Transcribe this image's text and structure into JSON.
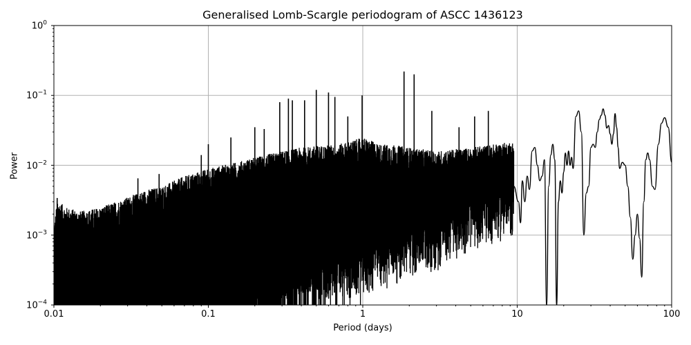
{
  "chart_data": {
    "type": "line",
    "title": "Generalised Lomb-Scargle periodogram of ASCC 1436123",
    "xlabel": "Period (days)",
    "ylabel": "Power",
    "xscale": "log",
    "yscale": "log",
    "xlim": [
      0.01,
      100
    ],
    "ylim": [
      0.0001,
      1
    ],
    "grid": true,
    "legend": null,
    "xticks": [
      {
        "value": 0.01,
        "label": "0.01"
      },
      {
        "value": 0.1,
        "label": "0.1"
      },
      {
        "value": 1,
        "label": "1"
      },
      {
        "value": 10,
        "label": "10"
      },
      {
        "value": 100,
        "label": "100"
      }
    ],
    "yticks": [
      {
        "value": 1,
        "base": "10",
        "exp": "0"
      },
      {
        "value": 0.1,
        "base": "10",
        "exp": "−1"
      },
      {
        "value": 0.01,
        "base": "10",
        "exp": "−2"
      },
      {
        "value": 0.001,
        "base": "10",
        "exp": "−3"
      },
      {
        "value": 0.0001,
        "base": "10",
        "exp": "−4"
      }
    ],
    "line_color": "#000000",
    "grid_color": "#b0b0b0",
    "noise_envelope": {
      "description": "Dense oscillating periodogram; upper envelope of power vs period (short periods filled to axis floor)",
      "period": [
        0.01,
        0.0105,
        0.012,
        0.015,
        0.02,
        0.03,
        0.04,
        0.05,
        0.07,
        0.1,
        0.15,
        0.2,
        0.3,
        0.4,
        0.5,
        0.7,
        1.0,
        1.3,
        1.5,
        2.0,
        3.0,
        4.0,
        5.0,
        7.0,
        9.5
      ],
      "power": [
        0.0013,
        0.0032,
        0.0025,
        0.0022,
        0.0025,
        0.0035,
        0.0045,
        0.005,
        0.007,
        0.009,
        0.011,
        0.013,
        0.016,
        0.018,
        0.019,
        0.02,
        0.025,
        0.02,
        0.02,
        0.018,
        0.016,
        0.017,
        0.018,
        0.02,
        0.022
      ],
      "floor_period": [
        0.01,
        0.2,
        0.3,
        0.4,
        0.5,
        0.7,
        1.0,
        1.5,
        2.0,
        3.0,
        5.0,
        9.5
      ],
      "floor_power": [
        0.0001,
        0.0001,
        0.00012,
        0.00015,
        0.0002,
        0.0003,
        0.0004,
        0.0006,
        0.0008,
        0.001,
        0.002,
        0.003
      ]
    },
    "peaks": {
      "period": [
        0.0105,
        0.035,
        0.048,
        0.09,
        0.1,
        0.14,
        0.2,
        0.23,
        0.29,
        0.33,
        0.35,
        0.42,
        0.5,
        0.6,
        0.66,
        0.8,
        0.99,
        1.85,
        2.15,
        2.8,
        4.2,
        5.3,
        6.5
      ],
      "power": [
        0.0034,
        0.0065,
        0.0075,
        0.014,
        0.02,
        0.025,
        0.035,
        0.033,
        0.08,
        0.09,
        0.085,
        0.085,
        0.12,
        0.11,
        0.095,
        0.05,
        0.1,
        0.22,
        0.2,
        0.06,
        0.035,
        0.05,
        0.06
      ]
    },
    "smooth_curve": {
      "description": "Smooth periodogram at long periods",
      "period": [
        9.5,
        10.2,
        10.5,
        10.8,
        11.2,
        11.6,
        12.0,
        12.5,
        13.0,
        13.5,
        14.0,
        14.5,
        15.0,
        15.5,
        16.0,
        16.5,
        17.0,
        17.5,
        18.0,
        18.5,
        19.0,
        19.5,
        20.0,
        20.5,
        21.0,
        21.5,
        22.0,
        22.5,
        23.0,
        24.0,
        25.0,
        26.0,
        27.0,
        28.0,
        29.0,
        30.0,
        31.0,
        32.0,
        33.0,
        34.0,
        35.0,
        36.0,
        37.0,
        38.0,
        39.0,
        40.0,
        41.0,
        42.0,
        43.0,
        44.0,
        45.0,
        46.0,
        48.0,
        50.0,
        52.0,
        54.0,
        56.0,
        58.0,
        60.0,
        62.0,
        64.0,
        66.0,
        68.0,
        70.0,
        72.0,
        75.0,
        78.0,
        82.0,
        86.0,
        90.0,
        95.0,
        100.0
      ],
      "power": [
        0.005,
        0.003,
        0.0015,
        0.006,
        0.003,
        0.007,
        0.0045,
        0.016,
        0.018,
        0.01,
        0.006,
        0.007,
        0.012,
        0.0001,
        0.005,
        0.014,
        0.02,
        0.012,
        0.0001,
        0.003,
        0.006,
        0.004,
        0.008,
        0.015,
        0.01,
        0.016,
        0.01,
        0.013,
        0.009,
        0.05,
        0.06,
        0.03,
        0.001,
        0.004,
        0.005,
        0.018,
        0.02,
        0.018,
        0.03,
        0.045,
        0.052,
        0.064,
        0.052,
        0.034,
        0.037,
        0.028,
        0.02,
        0.028,
        0.055,
        0.035,
        0.018,
        0.009,
        0.011,
        0.01,
        0.005,
        0.0018,
        0.00045,
        0.001,
        0.002,
        0.0009,
        0.00025,
        0.003,
        0.012,
        0.015,
        0.012,
        0.005,
        0.0045,
        0.02,
        0.04,
        0.048,
        0.035,
        0.011
      ]
    }
  }
}
